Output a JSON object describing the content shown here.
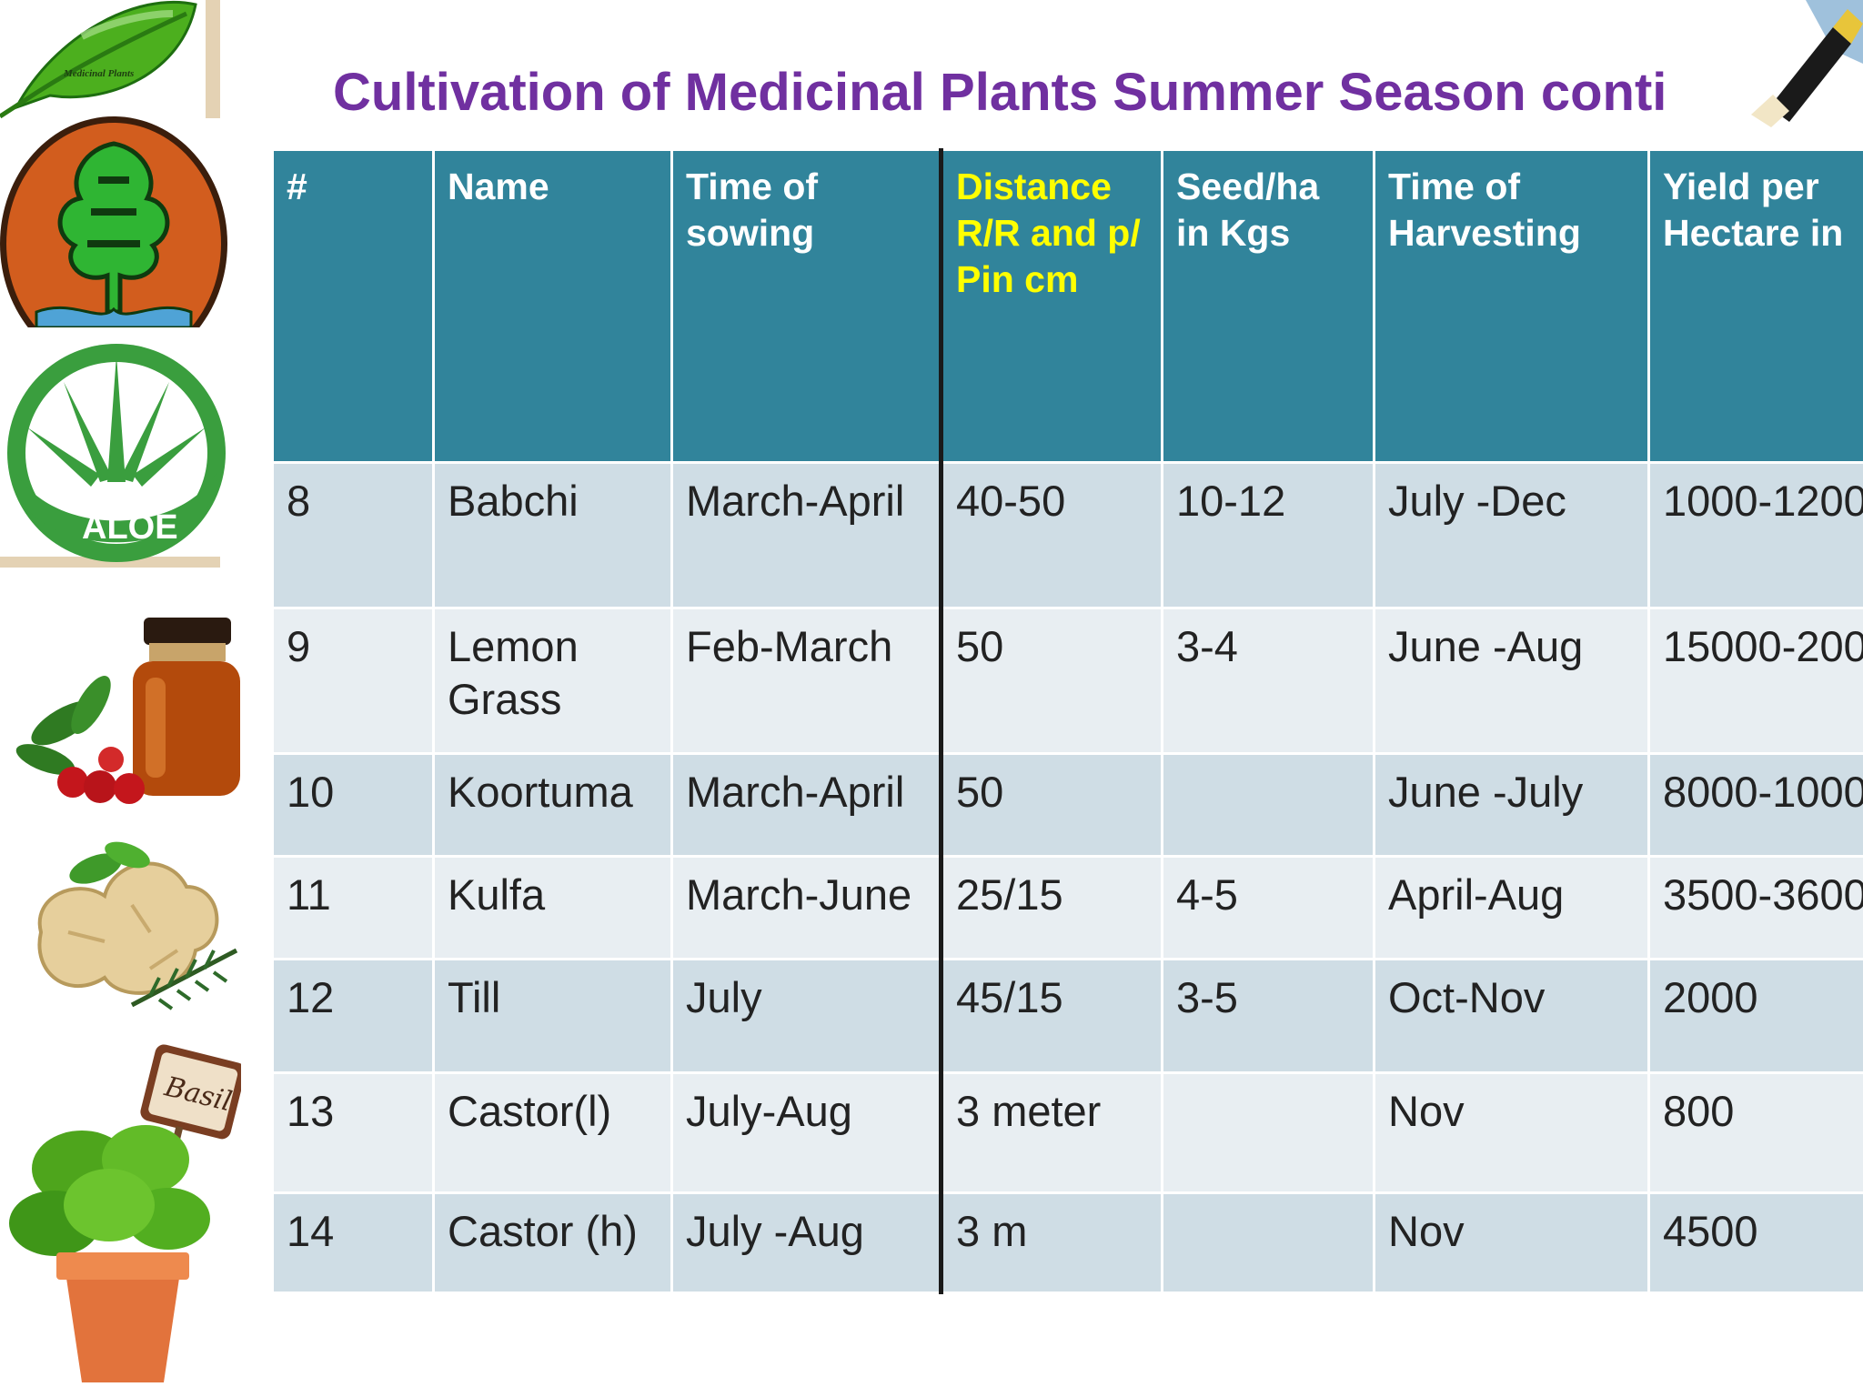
{
  "slide": {
    "title": "Cultivation of Medicinal Plants  Summer Season conti",
    "logo_caption": "Medicinal Plants",
    "aloe_badge_text": "ALOE",
    "basil_tag_text": "Basil"
  },
  "table": {
    "headers": [
      "#",
      "Name",
      "Time of sowing",
      "Distance R/R and p/ Pin cm",
      "Seed/ha in Kgs",
      "Time of Harvesting",
      "Yield per Hectare in"
    ],
    "highlighted_header_index": 3,
    "rows": [
      [
        "8",
        "Babchi",
        "March-April",
        "40-50",
        "10-12",
        "July -Dec",
        "1000-1200"
      ],
      [
        "9",
        "Lemon Grass",
        "Feb-March",
        "50",
        "3-4",
        "June -Aug",
        "15000-200"
      ],
      [
        "10",
        "Koortuma",
        "March-April",
        "50",
        "",
        "June -July",
        "8000-1000"
      ],
      [
        "11",
        "Kulfa",
        "March-June",
        "25/15",
        "4-5",
        "April-Aug",
        "3500-3600"
      ],
      [
        "12",
        "Till",
        "July",
        "45/15",
        "3-5",
        "Oct-Nov",
        "2000"
      ],
      [
        "13",
        "Castor(l)",
        "July-Aug",
        "3 meter",
        "",
        "Nov",
        "800"
      ],
      [
        "14",
        "Castor (h)",
        "July -Aug",
        "3 m",
        "",
        "Nov",
        "4500"
      ]
    ]
  },
  "colors": {
    "title": "#7030a0",
    "header_bg": "#31849b",
    "header_text": "#ffffff",
    "header_highlight": "#ffff00",
    "row_dark": "#cfdde5",
    "row_light": "#e8eef2"
  },
  "icons": [
    "leaf-logo-icon",
    "tree-emblem-icon",
    "aloe-badge-icon",
    "herbal-bottle-icon",
    "ginger-root-icon",
    "basil-pot-icon",
    "paint-brush-icon"
  ]
}
